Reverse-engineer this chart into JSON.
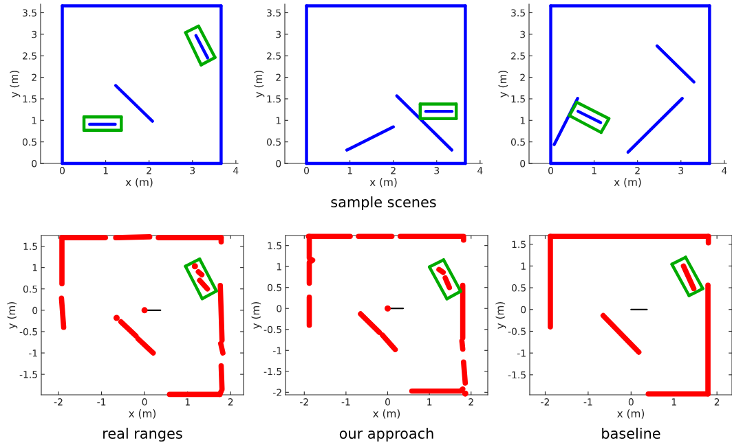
{
  "chart_data": [
    {
      "type": "line",
      "xlabel": "x (m)",
      "ylabel": "y (m)",
      "xlim": [
        -0.5,
        4.05
      ],
      "ylim": [
        0,
        3.7
      ],
      "xticks": [
        0,
        1,
        2,
        3,
        4
      ],
      "yticks": [
        0,
        0.5,
        1,
        1.5,
        2,
        2.5,
        3,
        3.5
      ],
      "grid": false,
      "series": [
        {
          "color": "#0000ff",
          "x": [
            0,
            3.66
          ],
          "values": [
            0,
            0
          ]
        },
        {
          "color": "#0000ff",
          "x": [
            3.66,
            3.66
          ],
          "values": [
            0,
            3.66
          ]
        },
        {
          "color": "#0000ff",
          "x": [
            3.66,
            0
          ],
          "values": [
            3.66,
            3.66
          ]
        },
        {
          "color": "#0000ff",
          "x": [
            0,
            0
          ],
          "values": [
            3.66,
            0
          ]
        },
        {
          "color": "#0000ff",
          "x": [
            1.23,
            2.08
          ],
          "values": [
            1.81,
            0.98
          ]
        },
        {
          "color": "#0000ff",
          "x": [
            0.63,
            1.22
          ],
          "values": [
            0.91,
            0.91
          ]
        },
        {
          "color": "#0000ff",
          "x": [
            3.08,
            3.35
          ],
          "values": [
            2.97,
            2.45
          ]
        },
        {
          "color": "#00aa00",
          "x": [
            0.5,
            1.36
          ],
          "values": [
            0.77,
            0.77
          ]
        },
        {
          "color": "#00aa00",
          "x": [
            1.36,
            1.36
          ],
          "values": [
            0.77,
            1.08
          ]
        },
        {
          "color": "#00aa00",
          "x": [
            1.36,
            0.5
          ],
          "values": [
            1.08,
            1.08
          ]
        },
        {
          "color": "#00aa00",
          "x": [
            0.5,
            0.5
          ],
          "values": [
            1.08,
            0.77
          ]
        },
        {
          "color": "#00aa00",
          "x": [
            2.84,
            3.14
          ],
          "values": [
            3.04,
            3.19
          ]
        },
        {
          "color": "#00aa00",
          "x": [
            3.14,
            3.52
          ],
          "values": [
            3.19,
            2.46
          ]
        },
        {
          "color": "#00aa00",
          "x": [
            3.52,
            3.2
          ],
          "values": [
            2.46,
            2.29
          ]
        },
        {
          "color": "#00aa00",
          "x": [
            3.2,
            2.84
          ],
          "values": [
            2.29,
            3.04
          ]
        }
      ]
    },
    {
      "type": "line",
      "xlabel": "x (m)",
      "ylabel": "y (m)",
      "xlim": [
        -0.5,
        4.05
      ],
      "ylim": [
        0,
        3.7
      ],
      "xticks": [
        0,
        1,
        2,
        3,
        4
      ],
      "yticks": [
        0,
        0.5,
        1,
        1.5,
        2,
        2.5,
        3,
        3.5
      ],
      "grid": false,
      "annotations": [
        "sample scenes"
      ],
      "series": [
        {
          "color": "#0000ff",
          "x": [
            0,
            3.66
          ],
          "values": [
            0,
            0
          ]
        },
        {
          "color": "#0000ff",
          "x": [
            3.66,
            3.66
          ],
          "values": [
            0,
            3.66
          ]
        },
        {
          "color": "#0000ff",
          "x": [
            3.66,
            0
          ],
          "values": [
            3.66,
            3.66
          ]
        },
        {
          "color": "#0000ff",
          "x": [
            0,
            0
          ],
          "values": [
            3.66,
            0
          ]
        },
        {
          "color": "#0000ff",
          "x": [
            0.93,
            2.0
          ],
          "values": [
            0.31,
            0.85
          ]
        },
        {
          "color": "#0000ff",
          "x": [
            2.08,
            3.35
          ],
          "values": [
            1.57,
            0.31
          ]
        },
        {
          "color": "#0000ff",
          "x": [
            2.75,
            3.35
          ],
          "values": [
            1.21,
            1.21
          ]
        },
        {
          "color": "#00aa00",
          "x": [
            2.62,
            3.45
          ],
          "values": [
            1.04,
            1.04
          ]
        },
        {
          "color": "#00aa00",
          "x": [
            3.45,
            3.45
          ],
          "values": [
            1.04,
            1.38
          ]
        },
        {
          "color": "#00aa00",
          "x": [
            3.45,
            2.62
          ],
          "values": [
            1.38,
            1.38
          ]
        },
        {
          "color": "#00aa00",
          "x": [
            2.62,
            2.62
          ],
          "values": [
            1.38,
            1.04
          ]
        }
      ]
    },
    {
      "type": "line",
      "xlabel": "x (m)",
      "ylabel": "y (m)",
      "xlim": [
        -0.5,
        4.05
      ],
      "ylim": [
        0,
        3.7
      ],
      "xticks": [
        0,
        1,
        2,
        3,
        4
      ],
      "yticks": [
        0,
        0.5,
        1,
        1.5,
        2,
        2.5,
        3,
        3.5
      ],
      "grid": false,
      "series": [
        {
          "color": "#0000ff",
          "x": [
            0,
            3.66
          ],
          "values": [
            0,
            0
          ]
        },
        {
          "color": "#0000ff",
          "x": [
            3.66,
            3.66
          ],
          "values": [
            0,
            3.66
          ]
        },
        {
          "color": "#0000ff",
          "x": [
            3.66,
            0
          ],
          "values": [
            3.66,
            3.66
          ]
        },
        {
          "color": "#0000ff",
          "x": [
            0,
            0
          ],
          "values": [
            3.66,
            0
          ]
        },
        {
          "color": "#0000ff",
          "x": [
            0.08,
            0.62
          ],
          "values": [
            0.44,
            1.51
          ]
        },
        {
          "color": "#0000ff",
          "x": [
            2.45,
            3.3
          ],
          "values": [
            2.73,
            1.89
          ]
        },
        {
          "color": "#0000ff",
          "x": [
            1.78,
            3.03
          ],
          "values": [
            0.26,
            1.51
          ]
        },
        {
          "color": "#0000ff",
          "x": [
            0.63,
            1.15
          ],
          "values": [
            1.21,
            0.95
          ]
        },
        {
          "color": "#00aa00",
          "x": [
            0.6,
            1.34
          ],
          "values": [
            1.42,
            1.04
          ]
        },
        {
          "color": "#00aa00",
          "x": [
            1.34,
            1.16
          ],
          "values": [
            1.04,
            0.72
          ]
        },
        {
          "color": "#00aa00",
          "x": [
            1.16,
            0.43
          ],
          "values": [
            0.72,
            1.11
          ]
        },
        {
          "color": "#00aa00",
          "x": [
            0.43,
            0.6
          ],
          "values": [
            1.11,
            1.42
          ]
        }
      ]
    },
    {
      "type": "line",
      "xlabel": "x (m)",
      "ylabel": "y (m)",
      "xlim": [
        -2.4,
        2.3
      ],
      "ylim": [
        -1.98,
        1.75
      ],
      "xticks": [
        -2,
        -1,
        0,
        1,
        2
      ],
      "yticks": [
        -1.5,
        -1,
        -0.5,
        0,
        0.5,
        1,
        1.5
      ],
      "grid": false,
      "annotations": [
        "real ranges"
      ],
      "series": [
        {
          "color": "#ff0000",
          "x": [
            -1.92,
            -0.91
          ],
          "values": [
            1.7,
            1.7
          ]
        },
        {
          "color": "#ff0000",
          "x": [
            -0.67,
            0.12
          ],
          "values": [
            1.7,
            1.72
          ]
        },
        {
          "color": "#ff0000",
          "x": [
            0.32,
            1.78
          ],
          "values": [
            1.7,
            1.7
          ]
        },
        {
          "color": "#ff0000",
          "x": [
            1.78,
            1.78
          ],
          "values": [
            1.7,
            1.6
          ]
        },
        {
          "color": "#ff0000",
          "x": [
            -1.92,
            -1.92
          ],
          "values": [
            1.7,
            0.62
          ]
        },
        {
          "color": "#ff0000",
          "x": [
            -1.93,
            -1.88
          ],
          "values": [
            0.28,
            -0.4
          ]
        },
        {
          "color": "#ff0000",
          "x": [
            1.76,
            1.8
          ],
          "values": [
            0.58,
            -0.7
          ]
        },
        {
          "color": "#ff0000",
          "x": [
            1.77,
            1.82
          ],
          "values": [
            -0.78,
            -1.0
          ]
        },
        {
          "color": "#ff0000",
          "x": [
            1.78,
            1.8
          ],
          "values": [
            -1.3,
            -1.85
          ]
        },
        {
          "color": "#ff0000",
          "x": [
            0.58,
            1.75
          ],
          "values": [
            -1.97,
            -1.97
          ]
        },
        {
          "color": "#ff0000",
          "x": [
            1.75,
            1.78
          ],
          "values": [
            -1.97,
            -1.9
          ]
        },
        {
          "color": "#ff0000",
          "x": [
            -0.55,
            -0.2
          ],
          "values": [
            -0.27,
            -0.6
          ]
        },
        {
          "color": "#ff0000",
          "x": [
            -0.15,
            0.2
          ],
          "values": [
            -0.67,
            -1.0
          ]
        },
        {
          "color": "#ff0000",
          "x": [
            1.25,
            1.33
          ],
          "values": [
            0.9,
            0.83
          ]
        },
        {
          "color": "#ff0000",
          "x": [
            1.28,
            1.46
          ],
          "values": [
            0.7,
            0.5
          ]
        },
        {
          "type": "scatter",
          "color": "#ff0000",
          "x": [
            -0.65,
            1.17,
            0
          ],
          "values": [
            -0.18,
            1.03,
            0
          ]
        },
        {
          "color": "#000000",
          "x": [
            0,
            0.37
          ],
          "values": [
            0,
            0
          ]
        },
        {
          "color": "#00aa00",
          "x": [
            0.95,
            1.28
          ],
          "values": [
            1.03,
            1.2
          ]
        },
        {
          "color": "#00aa00",
          "x": [
            1.28,
            1.67
          ],
          "values": [
            1.2,
            0.45
          ]
        },
        {
          "color": "#00aa00",
          "x": [
            1.67,
            1.34
          ],
          "values": [
            0.45,
            0.27
          ]
        },
        {
          "color": "#00aa00",
          "x": [
            1.34,
            0.95
          ],
          "values": [
            0.27,
            1.03
          ]
        }
      ]
    },
    {
      "type": "line",
      "xlabel": "x (m)",
      "ylabel": "y (m)",
      "xlim": [
        -2.45,
        2.4
      ],
      "ylim": [
        -2.06,
        1.74
      ],
      "xticks": [
        -2,
        -1,
        0,
        1,
        2
      ],
      "yticks": [
        -2,
        -1.5,
        -1,
        -0.5,
        0,
        0.5,
        1,
        1.5
      ],
      "grid": false,
      "annotations": [
        "our approach"
      ],
      "series": [
        {
          "color": "#ff0000",
          "x": [
            -1.9,
            -0.9
          ],
          "values": [
            1.72,
            1.72
          ]
        },
        {
          "color": "#ff0000",
          "x": [
            -0.7,
            0.1
          ],
          "values": [
            1.72,
            1.72
          ]
        },
        {
          "color": "#ff0000",
          "x": [
            0.3,
            1.82,
            1.82
          ],
          "values": [
            1.72,
            1.72,
            1.63
          ]
        },
        {
          "color": "#ff0000",
          "x": [
            -1.88,
            -1.88,
            -1.8,
            -1.88,
            -1.88
          ],
          "values": [
            1.72,
            1.2,
            1.15,
            1.1,
            0.6
          ]
        },
        {
          "color": "#ff0000",
          "x": [
            -1.88,
            -1.88
          ],
          "values": [
            0.27,
            -0.4
          ]
        },
        {
          "color": "#ff0000",
          "x": [
            1.8,
            1.8
          ],
          "values": [
            0.55,
            -0.7
          ]
        },
        {
          "color": "#ff0000",
          "x": [
            1.78,
            1.8
          ],
          "values": [
            -0.78,
            -0.97
          ]
        },
        {
          "color": "#ff0000",
          "x": [
            1.82,
            1.86
          ],
          "values": [
            -1.28,
            -1.78
          ]
        },
        {
          "color": "#ff0000",
          "x": [
            0.58,
            1.75,
            1.8
          ],
          "values": [
            -1.97,
            -1.97,
            -1.92
          ]
        },
        {
          "color": "#ff0000",
          "x": [
            -0.65,
            -0.2
          ],
          "values": [
            -0.13,
            -0.57
          ]
        },
        {
          "color": "#ff0000",
          "x": [
            -0.13,
            0.18
          ],
          "values": [
            -0.63,
            -0.98
          ]
        },
        {
          "color": "#ff0000",
          "x": [
            1.23,
            1.33
          ],
          "values": [
            0.93,
            0.86
          ]
        },
        {
          "color": "#ff0000",
          "x": [
            1.38,
            1.48
          ],
          "values": [
            0.73,
            0.5
          ]
        },
        {
          "type": "scatter",
          "color": "#ff0000",
          "x": [
            1.86,
            0
          ],
          "values": [
            -2.03,
            0
          ]
        },
        {
          "color": "#000000",
          "x": [
            0,
            0.37
          ],
          "values": [
            0,
            0
          ]
        },
        {
          "color": "#00aa00",
          "x": [
            1.0,
            1.34
          ],
          "values": [
            0.99,
            1.16
          ]
        },
        {
          "color": "#00aa00",
          "x": [
            1.34,
            1.75
          ],
          "values": [
            1.16,
            0.41
          ]
        },
        {
          "color": "#00aa00",
          "x": [
            1.75,
            1.42
          ],
          "values": [
            0.41,
            0.23
          ]
        },
        {
          "color": "#00aa00",
          "x": [
            1.42,
            1.0
          ],
          "values": [
            0.23,
            0.99
          ]
        }
      ]
    },
    {
      "type": "line",
      "xlabel": "x (m)",
      "ylabel": "y (m)",
      "xlim": [
        -2.36,
        2.35
      ],
      "ylim": [
        -1.96,
        1.7
      ],
      "xticks": [
        -2,
        -1,
        0,
        1,
        2
      ],
      "yticks": [
        -1.5,
        -1,
        -0.5,
        0,
        0.5,
        1,
        1.5
      ],
      "grid": false,
      "annotations": [
        "baseline"
      ],
      "series": [
        {
          "color": "#ff0000",
          "x": [
            -1.88,
            -1.88
          ],
          "values": [
            -0.4,
            1.68
          ]
        },
        {
          "color": "#ff0000",
          "x": [
            -1.88,
            1.8
          ],
          "values": [
            1.68,
            1.68
          ]
        },
        {
          "color": "#ff0000",
          "x": [
            1.8,
            1.8
          ],
          "values": [
            1.68,
            1.53
          ]
        },
        {
          "color": "#ff0000",
          "x": [
            1.79,
            1.79
          ],
          "values": [
            0.56,
            -1.94
          ]
        },
        {
          "color": "#ff0000",
          "x": [
            1.79,
            0.4
          ],
          "values": [
            -1.94,
            -1.94
          ]
        },
        {
          "color": "#ff0000",
          "x": [
            -0.65,
            0.18
          ],
          "values": [
            -0.14,
            -0.98
          ]
        },
        {
          "color": "#ff0000",
          "x": [
            1.22,
            1.46
          ],
          "values": [
            1.0,
            0.48
          ]
        },
        {
          "color": "#000000",
          "x": [
            0,
            0.37
          ],
          "values": [
            0,
            0
          ]
        },
        {
          "color": "#00aa00",
          "x": [
            0.95,
            1.27
          ],
          "values": [
            1.04,
            1.2
          ]
        },
        {
          "color": "#00aa00",
          "x": [
            1.27,
            1.67
          ],
          "values": [
            1.2,
            0.48
          ]
        },
        {
          "color": "#00aa00",
          "x": [
            1.67,
            1.35
          ],
          "values": [
            0.48,
            0.32
          ]
        },
        {
          "color": "#00aa00",
          "x": [
            1.35,
            0.95
          ],
          "values": [
            0.32,
            1.04
          ]
        }
      ]
    }
  ]
}
